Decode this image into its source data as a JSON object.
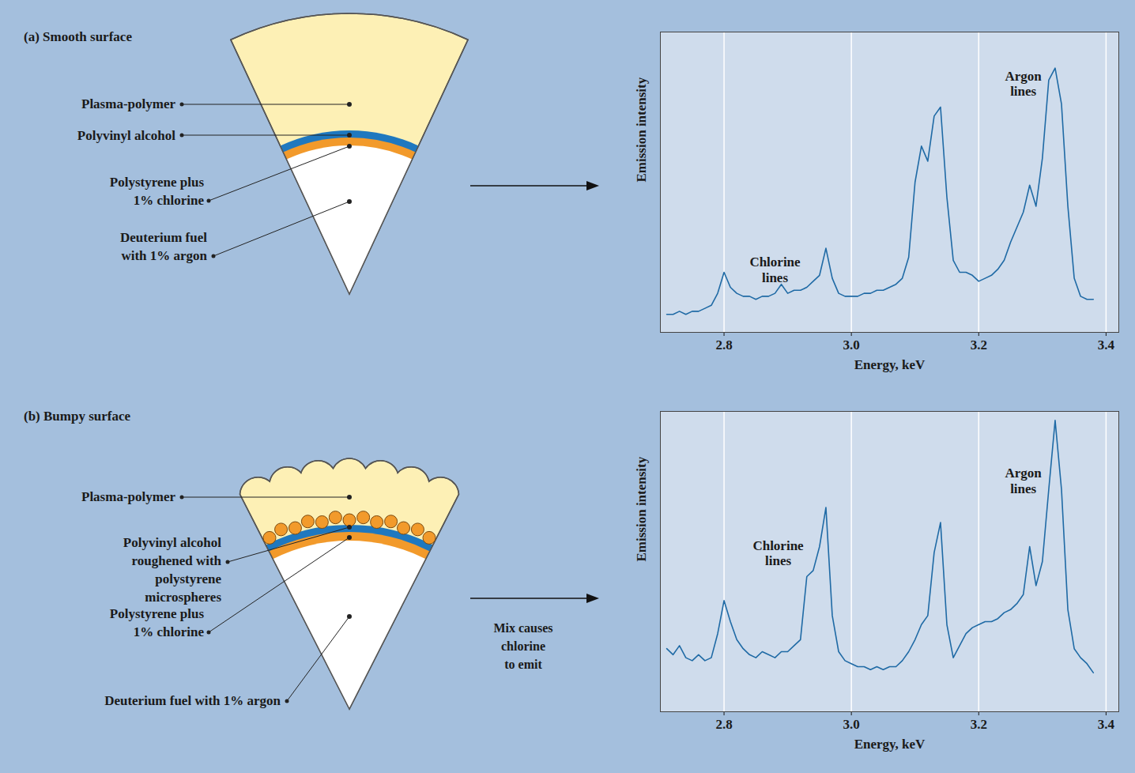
{
  "diagram": {
    "panels": [
      {
        "title": "(a) Smooth surface",
        "labels": [
          "Plasma-polymer",
          "Polyvinyl alcohol",
          "Polystyrene plus 1% chlorine",
          "Deuterium fuel with 1% argon"
        ]
      },
      {
        "title": "(b) Bumpy surface",
        "labels": [
          "Plasma-polymer",
          "Polyvinyl alcohol roughened with polystyrene microspheres",
          "Polystyrene plus 1% chlorine",
          "Deuterium fuel with 1% argon"
        ],
        "arrow_label": "Mix causes chlorine to emit"
      }
    ]
  },
  "chart_data": [
    {
      "type": "line",
      "xlabel": "Energy, keV",
      "ylabel": "Emission intensity",
      "color": "#1f6aa5",
      "x": [
        2.71,
        2.72,
        2.73,
        2.74,
        2.75,
        2.76,
        2.77,
        2.78,
        2.79,
        2.8,
        2.81,
        2.82,
        2.83,
        2.84,
        2.85,
        2.86,
        2.87,
        2.88,
        2.89,
        2.9,
        2.91,
        2.92,
        2.93,
        2.94,
        2.95,
        2.96,
        2.97,
        2.98,
        2.99,
        3.0,
        3.01,
        3.02,
        3.03,
        3.04,
        3.05,
        3.06,
        3.07,
        3.08,
        3.09,
        3.1,
        3.11,
        3.12,
        3.13,
        3.14,
        3.15,
        3.16,
        3.17,
        3.18,
        3.19,
        3.2,
        3.21,
        3.22,
        3.23,
        3.24,
        3.25,
        3.26,
        3.27,
        3.28,
        3.29,
        3.3,
        3.31,
        3.32,
        3.33,
        3.34,
        3.35,
        3.36,
        3.37,
        3.38
      ],
      "values": [
        6,
        6,
        7,
        6,
        7,
        7,
        8,
        9,
        13,
        20,
        15,
        13,
        12,
        12,
        11,
        12,
        12,
        13,
        16,
        13,
        14,
        14,
        15,
        17,
        19,
        28,
        18,
        13,
        12,
        12,
        12,
        13,
        13,
        14,
        14,
        15,
        16,
        18,
        25,
        50,
        62,
        57,
        72,
        75,
        45,
        24,
        20,
        20,
        19,
        17,
        18,
        19,
        21,
        24,
        30,
        35,
        40,
        49,
        42,
        58,
        84,
        88,
        76,
        42,
        18,
        12,
        11,
        11
      ],
      "xlim": [
        2.7,
        3.42
      ],
      "xticks": [
        2.8,
        {
          "value": 3,
          "label": "3.0"
        },
        3.2,
        3.4
      ],
      "ylim": [
        0,
        100
      ],
      "yticks": [],
      "grid": true,
      "tick_labels": "x",
      "annotations": [
        {
          "text": "Chlorine lines",
          "x": 2.88,
          "y": 21
        },
        {
          "text": "Argon lines",
          "x": 3.27,
          "y": 83
        }
      ]
    },
    {
      "type": "line",
      "xlabel": "Energy, keV",
      "ylabel": "Emission intensity",
      "color": "#1f6aa5",
      "x": [
        2.71,
        2.72,
        2.73,
        2.74,
        2.75,
        2.76,
        2.77,
        2.78,
        2.79,
        2.8,
        2.81,
        2.82,
        2.83,
        2.84,
        2.85,
        2.86,
        2.87,
        2.88,
        2.89,
        2.9,
        2.91,
        2.92,
        2.93,
        2.94,
        2.95,
        2.96,
        2.97,
        2.98,
        2.99,
        3.0,
        3.01,
        3.02,
        3.03,
        3.04,
        3.05,
        3.06,
        3.07,
        3.08,
        3.09,
        3.1,
        3.11,
        3.12,
        3.13,
        3.14,
        3.15,
        3.16,
        3.17,
        3.18,
        3.19,
        3.2,
        3.21,
        3.22,
        3.23,
        3.24,
        3.25,
        3.26,
        3.27,
        3.28,
        3.29,
        3.3,
        3.31,
        3.32,
        3.33,
        3.34,
        3.35,
        3.36,
        3.37,
        3.38
      ],
      "values": [
        21,
        19,
        22,
        18,
        17,
        19,
        17,
        18,
        26,
        37,
        30,
        24,
        21,
        19,
        18,
        20,
        19,
        18,
        20,
        20,
        22,
        24,
        45,
        47,
        55,
        68,
        32,
        20,
        17,
        16,
        15,
        15,
        14,
        15,
        14,
        15,
        15,
        17,
        20,
        24,
        29,
        32,
        53,
        63,
        29,
        18,
        22,
        26,
        28,
        29,
        30,
        30,
        31,
        33,
        34,
        36,
        39,
        55,
        42,
        50,
        74,
        97,
        74,
        34,
        21,
        18,
        16,
        13
      ],
      "xlim": [
        2.7,
        3.42
      ],
      "xticks": [
        2.8,
        {
          "value": 3,
          "label": "3.0"
        },
        3.2,
        3.4
      ],
      "ylim": [
        0,
        100
      ],
      "yticks": [],
      "grid": true,
      "tick_labels": "x",
      "annotations": [
        {
          "text": "Chlorine lines",
          "x": 2.885,
          "y": 53
        },
        {
          "text": "Argon lines",
          "x": 3.27,
          "y": 77
        }
      ]
    }
  ]
}
